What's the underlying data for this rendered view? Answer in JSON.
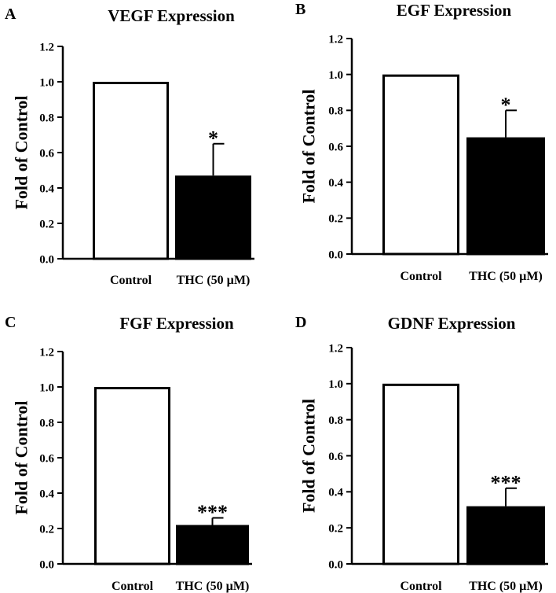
{
  "chart_data": [
    {
      "type": "bar",
      "panel": "A",
      "title": "VEGF Expression",
      "ylabel": "Fold of Control",
      "ylim": [
        0,
        1.2
      ],
      "yticks": [
        "0.0",
        "0.2",
        "0.4",
        "0.6",
        "0.8",
        "1.0",
        "1.2"
      ],
      "categories": [
        "Control",
        "THC (50 µM)"
      ],
      "values": [
        1.0,
        0.47
      ],
      "errors": [
        0,
        0.18
      ],
      "significance": [
        "",
        "*"
      ],
      "fills": [
        "#ffffff",
        "#000000"
      ]
    },
    {
      "type": "bar",
      "panel": "B",
      "title": "EGF Expression",
      "ylabel": "Fold of Control",
      "ylim": [
        0,
        1.2
      ],
      "yticks": [
        "0.0",
        "0.2",
        "0.4",
        "0.6",
        "0.8",
        "1.0",
        "1.2"
      ],
      "categories": [
        "Control",
        "THC (50 µM)"
      ],
      "values": [
        1.0,
        0.65
      ],
      "errors": [
        0,
        0.15
      ],
      "significance": [
        "",
        "*"
      ],
      "fills": [
        "#ffffff",
        "#000000"
      ]
    },
    {
      "type": "bar",
      "panel": "C",
      "title": "FGF Expression",
      "ylabel": "Fold of Control",
      "ylim": [
        0,
        1.2
      ],
      "yticks": [
        "0.0",
        "0.2",
        "0.4",
        "0.6",
        "0.8",
        "1.0",
        "1.2"
      ],
      "categories": [
        "Control",
        "THC (50 µM)"
      ],
      "values": [
        1.0,
        0.22
      ],
      "errors": [
        0,
        0.04
      ],
      "significance": [
        "",
        "***"
      ],
      "fills": [
        "#ffffff",
        "#000000"
      ]
    },
    {
      "type": "bar",
      "panel": "D",
      "title": "GDNF Expression",
      "ylabel": "Fold of Control",
      "ylim": [
        0,
        1.2
      ],
      "yticks": [
        "0.0",
        "0.2",
        "0.4",
        "0.6",
        "0.8",
        "1.0",
        "1.2"
      ],
      "categories": [
        "Control",
        "THC (50 µM)"
      ],
      "values": [
        1.0,
        0.32
      ],
      "errors": [
        0,
        0.1
      ],
      "significance": [
        "",
        "***"
      ],
      "fills": [
        "#ffffff",
        "#000000"
      ]
    }
  ]
}
